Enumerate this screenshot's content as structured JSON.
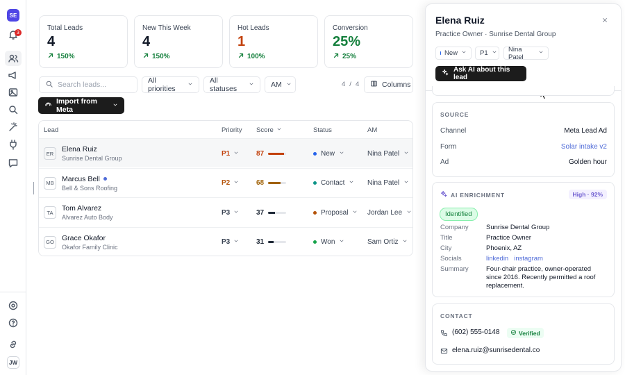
{
  "sidebar": {
    "avatar": "SE",
    "notifications": "3",
    "user": "JW"
  },
  "stats": [
    {
      "label": "Total Leads",
      "value": "4",
      "change": "150%",
      "color": "#111827"
    },
    {
      "label": "New This Week",
      "value": "4",
      "change": "150%",
      "color": "#111827"
    },
    {
      "label": "Hot Leads",
      "value": "1",
      "change": "100%",
      "color": "#c2410c"
    },
    {
      "label": "Conversion",
      "value": "25%",
      "change": "25%",
      "color": "#15803d"
    }
  ],
  "toolbar": {
    "search": "Search leads...",
    "priority_filter": "All priorities",
    "status_filter": "All statuses",
    "am_filter": "AM",
    "shown": "4",
    "separator": "/",
    "total": "4",
    "columns": "Columns",
    "import": "Import from Meta"
  },
  "table": {
    "headers": [
      "Lead",
      "Priority",
      "Score",
      "Status",
      "AM"
    ],
    "rows": [
      {
        "initials": "ER",
        "name": "Elena Ruiz",
        "company": "Sunrise Dental Group",
        "unread": false,
        "priority": "P1",
        "priority_color": "#c2410c",
        "score": 87,
        "score_color": "#c2410c",
        "status": "New",
        "status_color": "#2563eb",
        "am": "Nina Patel",
        "selected": true
      },
      {
        "initials": "MB",
        "name": "Marcus Bell",
        "company": "Bell & Sons Roofing",
        "unread": true,
        "priority": "P2",
        "priority_color": "#b45309",
        "score": 68,
        "score_color": "#a16207",
        "status": "Contact",
        "status_color": "#0d9488",
        "am": "Nina Patel",
        "selected": false
      },
      {
        "initials": "TA",
        "name": "Tom Alvarez",
        "company": "Alvarez Auto Body",
        "unread": false,
        "priority": "P3",
        "priority_color": "#374151",
        "score": 37,
        "score_color": "#1f2937",
        "status": "Proposal",
        "status_color": "#b45309",
        "am": "Jordan Lee",
        "selected": false
      },
      {
        "initials": "GO",
        "name": "Grace Okafor",
        "company": "Okafor Family Clinic",
        "unread": false,
        "priority": "P3",
        "priority_color": "#374151",
        "score": 31,
        "score_color": "#1f2937",
        "status": "Won",
        "status_color": "#16a34a",
        "am": "Sam Ortiz",
        "selected": false
      }
    ]
  },
  "panel": {
    "name": "Elena Ruiz",
    "subtitle": "Practice Owner · Sunrise Dental Group",
    "chips": [
      "New",
      "P1",
      "Nina Patel"
    ],
    "ask_ai": "Ask AI about this lead",
    "source": {
      "title": "SOURCE",
      "rows": [
        {
          "key": "Channel",
          "value": "Meta Lead Ad"
        },
        {
          "key": "Form",
          "value": "Solar intake v2"
        },
        {
          "key": "Ad",
          "value": "Golden hour"
        }
      ]
    },
    "enrichment": {
      "title": "AI ENRICHMENT",
      "confidence": "High · 92%",
      "tag": "Identified",
      "rows": [
        {
          "key": "Company",
          "value": "Sunrise Dental Group"
        },
        {
          "key": "Title",
          "value": "Practice Owner"
        },
        {
          "key": "City",
          "value": "Phoenix, AZ"
        },
        {
          "key": "Socials",
          "links": [
            "linkedin",
            "instagram"
          ]
        },
        {
          "key": "Summary",
          "value": "Four-chair practice, owner-operated since 2016. Recently permitted a roof replacement."
        }
      ]
    },
    "contact": {
      "title": "CONTACT",
      "phone": "(602) 555-0148",
      "verified": "Verified",
      "email": "elena.ruiz@sunrisedental.co"
    }
  }
}
